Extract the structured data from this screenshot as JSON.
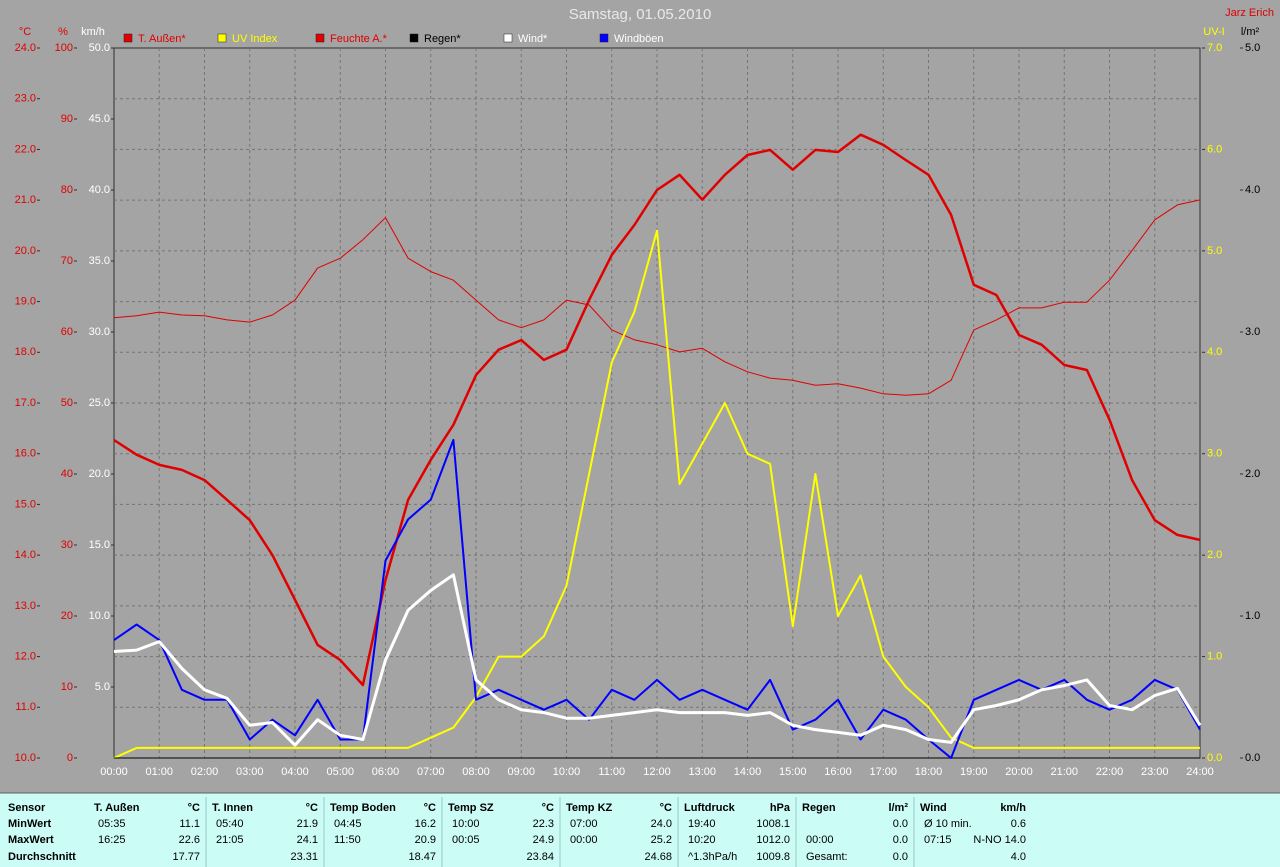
{
  "chart_data": {
    "type": "line",
    "title": "Samstag, 01.05.2010",
    "author": "Jarz Erich",
    "grid": true,
    "xlim": [
      0,
      24
    ],
    "xticks": [
      {
        "value": 0,
        "label": "00:00"
      },
      {
        "value": 1,
        "label": "01:00"
      },
      {
        "value": 2,
        "label": "02:00"
      },
      {
        "value": 3,
        "label": "03:00"
      },
      {
        "value": 4,
        "label": "04:00"
      },
      {
        "value": 5,
        "label": "05:00"
      },
      {
        "value": 6,
        "label": "06:00"
      },
      {
        "value": 7,
        "label": "07:00"
      },
      {
        "value": 8,
        "label": "08:00"
      },
      {
        "value": 9,
        "label": "09:00"
      },
      {
        "value": 10,
        "label": "10:00"
      },
      {
        "value": 11,
        "label": "11:00"
      },
      {
        "value": 12,
        "label": "12:00"
      },
      {
        "value": 13,
        "label": "13:00"
      },
      {
        "value": 14,
        "label": "14:00"
      },
      {
        "value": 15,
        "label": "15:00"
      },
      {
        "value": 16,
        "label": "16:00"
      },
      {
        "value": 17,
        "label": "17:00"
      },
      {
        "value": 18,
        "label": "18:00"
      },
      {
        "value": 19,
        "label": "19:00"
      },
      {
        "value": 20,
        "label": "20:00"
      },
      {
        "value": 21,
        "label": "21:00"
      },
      {
        "value": 22,
        "label": "22:00"
      },
      {
        "value": 23,
        "label": "23:00"
      },
      {
        "value": 24,
        "label": "24:00"
      }
    ],
    "x": [
      0,
      0.5,
      1,
      1.5,
      2,
      2.5,
      3,
      3.5,
      4,
      4.5,
      5,
      5.5,
      6,
      6.5,
      7,
      7.5,
      8,
      8.5,
      9,
      9.5,
      10,
      10.5,
      11,
      11.5,
      12,
      12.5,
      13,
      13.5,
      14,
      14.5,
      15,
      15.5,
      16,
      16.5,
      17,
      17.5,
      18,
      18.5,
      19,
      19.5,
      20,
      20.5,
      21,
      21.5,
      22,
      22.5,
      23,
      23.5,
      24
    ],
    "axes": [
      {
        "id": "temp",
        "side": "left",
        "label": "°C",
        "color": "#e00000",
        "lim": [
          10,
          24
        ],
        "ticks": [
          {
            "value": 10,
            "label": "10.0"
          },
          {
            "value": 11,
            "label": "11.0"
          },
          {
            "value": 12,
            "label": "12.0"
          },
          {
            "value": 13,
            "label": "13.0"
          },
          {
            "value": 14,
            "label": "14.0"
          },
          {
            "value": 15,
            "label": "15.0"
          },
          {
            "value": 16,
            "label": "16.0"
          },
          {
            "value": 17,
            "label": "17.0"
          },
          {
            "value": 18,
            "label": "18.0"
          },
          {
            "value": 19,
            "label": "19.0"
          },
          {
            "value": 20,
            "label": "20.0"
          },
          {
            "value": 21,
            "label": "21.0"
          },
          {
            "value": 22,
            "label": "22.0"
          },
          {
            "value": 23,
            "label": "23.0"
          },
          {
            "value": 24,
            "label": "24.0"
          }
        ]
      },
      {
        "id": "hum",
        "side": "left",
        "label": "%",
        "color": "#e00000",
        "lim": [
          0,
          100
        ],
        "ticks": [
          0,
          10,
          20,
          30,
          40,
          50,
          60,
          70,
          80,
          90,
          100
        ]
      },
      {
        "id": "wind",
        "side": "left",
        "label": "km/h",
        "color": "#ffffff",
        "lim": [
          0,
          50
        ],
        "ticks": [
          {
            "value": 5,
            "label": "5.0"
          },
          {
            "value": 10,
            "label": "10.0"
          },
          {
            "value": 15,
            "label": "15.0"
          },
          {
            "value": 20,
            "label": "20.0"
          },
          {
            "value": 25,
            "label": "25.0"
          },
          {
            "value": 30,
            "label": "30.0"
          },
          {
            "value": 35,
            "label": "35.0"
          },
          {
            "value": 40,
            "label": "40.0"
          },
          {
            "value": 45,
            "label": "45.0"
          },
          {
            "value": 50,
            "label": "50.0"
          }
        ]
      },
      {
        "id": "uv",
        "side": "right",
        "label": "UV-I",
        "color": "#ffff00",
        "lim": [
          0,
          7
        ],
        "ticks": [
          {
            "value": 0,
            "label": "0.0"
          },
          {
            "value": 1,
            "label": "1.0"
          },
          {
            "value": 2,
            "label": "2.0"
          },
          {
            "value": 3,
            "label": "3.0"
          },
          {
            "value": 4,
            "label": "4.0"
          },
          {
            "value": 5,
            "label": "5.0"
          },
          {
            "value": 6,
            "label": "6.0"
          },
          {
            "value": 7,
            "label": "7.0"
          }
        ]
      },
      {
        "id": "rain",
        "side": "right",
        "label": "l/m²",
        "color": "#000000",
        "lim": [
          0,
          5
        ],
        "ticks": [
          {
            "value": 0,
            "label": "0.0"
          },
          {
            "value": 1,
            "label": "1.0"
          },
          {
            "value": 2,
            "label": "2.0"
          },
          {
            "value": 3,
            "label": "3.0"
          },
          {
            "value": 4,
            "label": "4.0"
          },
          {
            "value": 5,
            "label": "5.0"
          }
        ]
      }
    ],
    "series": [
      {
        "name": "T. Außen*",
        "color": "#e00000",
        "text_color": "#e00000",
        "axis": "temp",
        "values": [
          16.27,
          15.98,
          15.78,
          15.68,
          15.48,
          15.09,
          14.69,
          14.0,
          13.12,
          12.23,
          11.93,
          11.44,
          13.51,
          15.09,
          15.88,
          16.57,
          17.55,
          18.05,
          18.24,
          17.85,
          18.05,
          19.03,
          19.92,
          20.51,
          21.2,
          21.5,
          21.01,
          21.5,
          21.89,
          21.99,
          21.6,
          21.99,
          21.95,
          22.29,
          22.09,
          21.79,
          21.5,
          20.71,
          19.33,
          19.13,
          18.34,
          18.15,
          17.75,
          17.65,
          16.67,
          15.48,
          14.69,
          14.4,
          14.3
        ]
      },
      {
        "name": "UV Index",
        "color": "#ffff00",
        "text_color": "#ffff00",
        "axis": "uv",
        "values": [
          0.0,
          0.1,
          0.1,
          0.1,
          0.1,
          0.1,
          0.1,
          0.1,
          0.1,
          0.1,
          0.1,
          0.1,
          0.1,
          0.1,
          0.2,
          0.3,
          0.6,
          1.0,
          1.0,
          1.2,
          1.7,
          2.8,
          3.9,
          4.4,
          5.2,
          2.7,
          3.1,
          3.5,
          3.0,
          2.9,
          1.3,
          2.8,
          1.4,
          1.8,
          1.0,
          0.7,
          0.5,
          0.2,
          0.1,
          0.1,
          0.1,
          0.1,
          0.1,
          0.1,
          0.1,
          0.1,
          0.1,
          0.1,
          0.1
        ]
      },
      {
        "name": "Feuchte A.*",
        "color": "#e00000",
        "text_color": "#e00000",
        "axis": "hum",
        "values": [
          62.0,
          62.3,
          62.8,
          62.4,
          62.3,
          61.7,
          61.4,
          62.4,
          64.5,
          69.0,
          70.4,
          73.0,
          76.1,
          70.4,
          68.5,
          67.3,
          64.5,
          61.7,
          60.6,
          61.7,
          64.5,
          63.8,
          60.3,
          58.9,
          58.2,
          57.2,
          57.7,
          55.8,
          54.4,
          53.5,
          53.2,
          52.5,
          52.7,
          52.1,
          51.3,
          51.1,
          51.3,
          53.2,
          60.3,
          61.7,
          63.4,
          63.4,
          64.2,
          64.2,
          67.3,
          71.5,
          75.8,
          77.9,
          78.6
        ]
      },
      {
        "name": "Regen*",
        "color": "#000000",
        "text_color": "#000000",
        "axis": "rain",
        "values": [
          0,
          0,
          0,
          0,
          0,
          0,
          0,
          0,
          0,
          0,
          0,
          0,
          0,
          0,
          0,
          0,
          0,
          0,
          0,
          0,
          0,
          0,
          0,
          0,
          0,
          0,
          0,
          0,
          0,
          0,
          0,
          0,
          0,
          0,
          0,
          0,
          0,
          0,
          0,
          0,
          0,
          0,
          0,
          0,
          0,
          0,
          0,
          0,
          0
        ]
      },
      {
        "name": "Wind*",
        "color": "#ffffff",
        "text_color": "#ffffff",
        "axis": "wind",
        "values": [
          7.5,
          7.6,
          8.2,
          6.3,
          4.8,
          4.2,
          2.3,
          2.5,
          0.9,
          2.7,
          1.6,
          1.3,
          6.9,
          10.4,
          11.8,
          12.9,
          5.5,
          4.1,
          3.4,
          3.2,
          2.8,
          2.8,
          3.0,
          3.2,
          3.4,
          3.2,
          3.2,
          3.2,
          3.0,
          3.2,
          2.3,
          2.0,
          1.8,
          1.6,
          2.3,
          2.0,
          1.3,
          1.1,
          3.4,
          3.7,
          4.1,
          4.8,
          5.1,
          5.5,
          3.7,
          3.4,
          4.4,
          4.9,
          2.3
        ]
      },
      {
        "name": "Windböen",
        "color": "#0000ff",
        "text_color": "#ffffff",
        "axis": "wind",
        "values": [
          8.3,
          9.4,
          8.3,
          4.8,
          4.1,
          4.1,
          1.3,
          2.7,
          1.6,
          4.1,
          1.3,
          1.3,
          13.9,
          16.8,
          18.2,
          22.4,
          4.1,
          4.8,
          4.1,
          3.4,
          4.1,
          2.7,
          4.8,
          4.1,
          5.5,
          4.1,
          4.8,
          4.1,
          3.4,
          5.5,
          2.0,
          2.7,
          4.1,
          1.3,
          3.4,
          2.7,
          1.3,
          0,
          4.1,
          4.8,
          5.5,
          4.8,
          5.5,
          4.1,
          3.4,
          4.1,
          5.5,
          4.8,
          2.0
        ]
      }
    ]
  },
  "table": {
    "row_labels": [
      "Sensor",
      "MinWert",
      "MaxWert",
      "Durchschnitt"
    ],
    "groups": [
      {
        "name": "T. Außen",
        "unit": "°C",
        "rows": [
          {
            "time": "05:35",
            "value": "11.1"
          },
          {
            "time": "16:25",
            "value": "22.6"
          },
          {
            "value": "17.77"
          }
        ]
      },
      {
        "name": "T. Innen",
        "unit": "°C",
        "rows": [
          {
            "time": "05:40",
            "value": "21.9"
          },
          {
            "time": "21:05",
            "value": "24.1"
          },
          {
            "value": "23.31"
          }
        ]
      },
      {
        "name": "Temp Boden",
        "unit": "°C",
        "rows": [
          {
            "time": "04:45",
            "value": "16.2"
          },
          {
            "time": "11:50",
            "value": "20.9"
          },
          {
            "value": "18.47"
          }
        ]
      },
      {
        "name": "Temp SZ",
        "unit": "°C",
        "rows": [
          {
            "time": "10:00",
            "value": "22.3"
          },
          {
            "time": "00:05",
            "value": "24.9"
          },
          {
            "value": "23.84"
          }
        ]
      },
      {
        "name": "Temp KZ",
        "unit": "°C",
        "rows": [
          {
            "time": "07:00",
            "value": "24.0"
          },
          {
            "time": "00:00",
            "value": "25.2"
          },
          {
            "value": "24.68"
          }
        ]
      },
      {
        "name": "Luftdruck",
        "unit": "hPa",
        "rows": [
          {
            "time": "19:40",
            "value": "1008.1"
          },
          {
            "time": "10:20",
            "value": "1012.0"
          },
          {
            "time": "^1.3hPa/h",
            "value": "1009.8"
          }
        ]
      },
      {
        "name": "Regen",
        "unit": "l/m²",
        "rows": [
          {
            "value": "0.0"
          },
          {
            "time": "00:00",
            "value": "0.0"
          },
          {
            "time": "Gesamt:",
            "value": "0.0"
          }
        ]
      },
      {
        "name": "Wind",
        "unit": "km/h",
        "rows": [
          {
            "time": "Ø 10 min.",
            "value": "0.6"
          },
          {
            "time": "07:15",
            "value": "N-NO 14.0"
          },
          {
            "value": "4.0"
          }
        ]
      }
    ]
  }
}
